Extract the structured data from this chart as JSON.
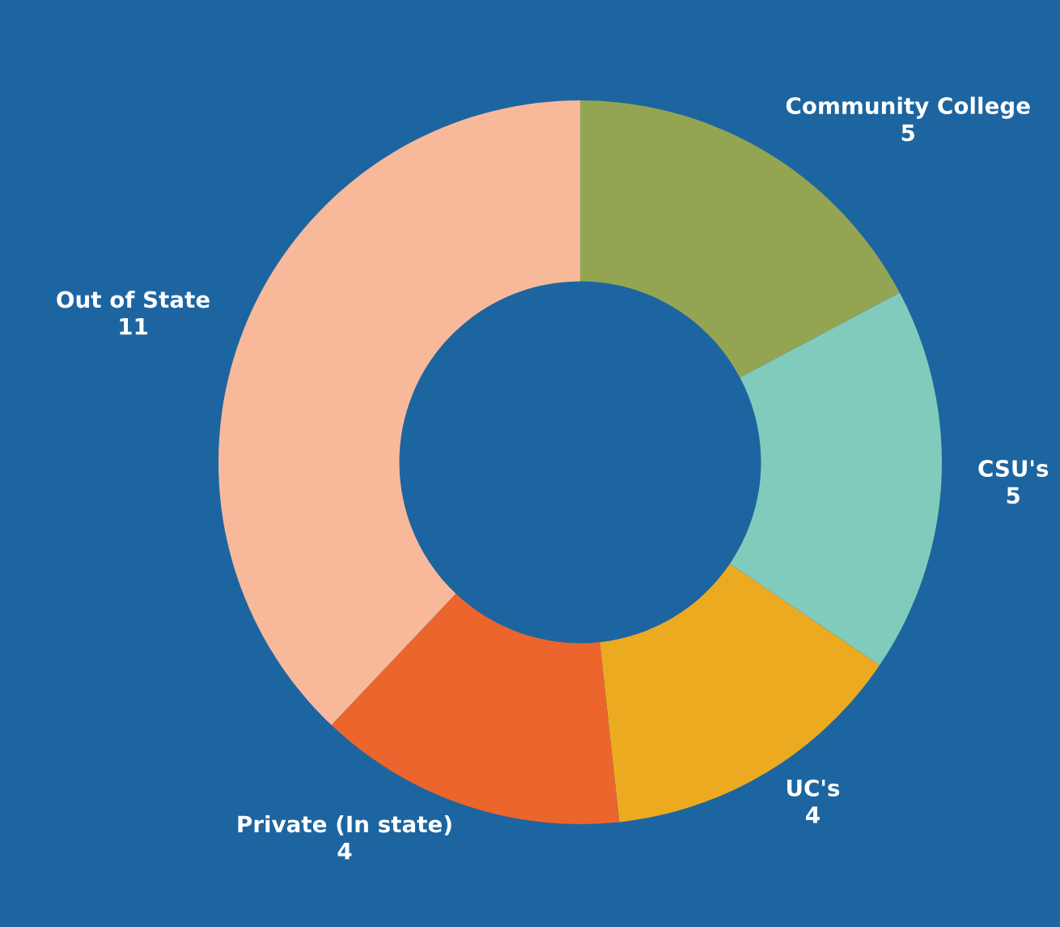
{
  "chart_data": {
    "type": "donut",
    "categories": [
      "Community College",
      "CSU's",
      "UC's",
      "Private (In state)",
      "Out of State"
    ],
    "values": [
      5,
      5,
      4,
      4,
      11
    ],
    "colors": [
      "#93a553",
      "#80cbbb",
      "#ecaa20",
      "#ec652d",
      "#f8b99b"
    ],
    "data_labels": true,
    "legend": false
  }
}
